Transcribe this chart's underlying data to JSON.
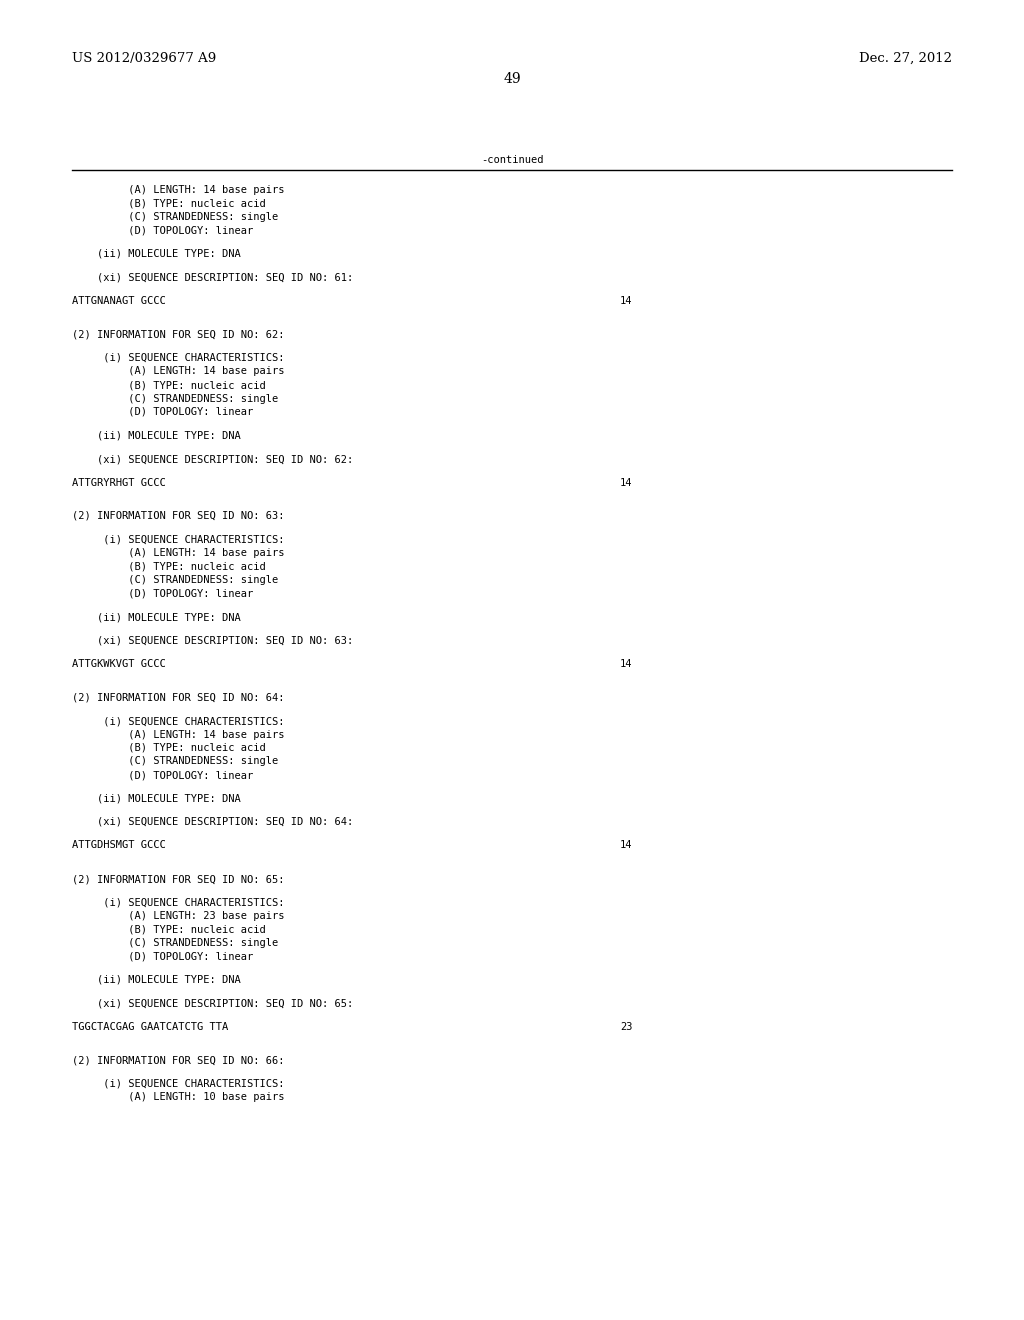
{
  "header_left": "US 2012/0329677 A9",
  "header_right": "Dec. 27, 2012",
  "page_number": "49",
  "continued_label": "-continued",
  "background_color": "#ffffff",
  "text_color": "#000000",
  "font_size_header": 9.5,
  "font_size_body": 7.5,
  "font_size_page": 10,
  "lines": [
    {
      "style": "mono",
      "text": "         (A) LENGTH: 14 base pairs"
    },
    {
      "style": "mono",
      "text": "         (B) TYPE: nucleic acid"
    },
    {
      "style": "mono",
      "text": "         (C) STRANDEDNESS: single"
    },
    {
      "style": "mono",
      "text": "         (D) TOPOLOGY: linear"
    },
    {
      "style": "blank"
    },
    {
      "style": "mono",
      "text": "    (ii) MOLECULE TYPE: DNA"
    },
    {
      "style": "blank"
    },
    {
      "style": "mono",
      "text": "    (xi) SEQUENCE DESCRIPTION: SEQ ID NO: 61:"
    },
    {
      "style": "blank"
    },
    {
      "style": "sequence",
      "seq": "ATTGNANAGT GCCC",
      "num": "14"
    },
    {
      "style": "blank"
    },
    {
      "style": "blank"
    },
    {
      "style": "mono",
      "text": "(2) INFORMATION FOR SEQ ID NO: 62:"
    },
    {
      "style": "blank"
    },
    {
      "style": "mono",
      "text": "     (i) SEQUENCE CHARACTERISTICS:"
    },
    {
      "style": "mono",
      "text": "         (A) LENGTH: 14 base pairs"
    },
    {
      "style": "mono",
      "text": "         (B) TYPE: nucleic acid"
    },
    {
      "style": "mono",
      "text": "         (C) STRANDEDNESS: single"
    },
    {
      "style": "mono",
      "text": "         (D) TOPOLOGY: linear"
    },
    {
      "style": "blank"
    },
    {
      "style": "mono",
      "text": "    (ii) MOLECULE TYPE: DNA"
    },
    {
      "style": "blank"
    },
    {
      "style": "mono",
      "text": "    (xi) SEQUENCE DESCRIPTION: SEQ ID NO: 62:"
    },
    {
      "style": "blank"
    },
    {
      "style": "sequence",
      "seq": "ATTGRYRHGT GCCC",
      "num": "14"
    },
    {
      "style": "blank"
    },
    {
      "style": "blank"
    },
    {
      "style": "mono",
      "text": "(2) INFORMATION FOR SEQ ID NO: 63:"
    },
    {
      "style": "blank"
    },
    {
      "style": "mono",
      "text": "     (i) SEQUENCE CHARACTERISTICS:"
    },
    {
      "style": "mono",
      "text": "         (A) LENGTH: 14 base pairs"
    },
    {
      "style": "mono",
      "text": "         (B) TYPE: nucleic acid"
    },
    {
      "style": "mono",
      "text": "         (C) STRANDEDNESS: single"
    },
    {
      "style": "mono",
      "text": "         (D) TOPOLOGY: linear"
    },
    {
      "style": "blank"
    },
    {
      "style": "mono",
      "text": "    (ii) MOLECULE TYPE: DNA"
    },
    {
      "style": "blank"
    },
    {
      "style": "mono",
      "text": "    (xi) SEQUENCE DESCRIPTION: SEQ ID NO: 63:"
    },
    {
      "style": "blank"
    },
    {
      "style": "sequence",
      "seq": "ATTGKWKVGT GCCC",
      "num": "14"
    },
    {
      "style": "blank"
    },
    {
      "style": "blank"
    },
    {
      "style": "mono",
      "text": "(2) INFORMATION FOR SEQ ID NO: 64:"
    },
    {
      "style": "blank"
    },
    {
      "style": "mono",
      "text": "     (i) SEQUENCE CHARACTERISTICS:"
    },
    {
      "style": "mono",
      "text": "         (A) LENGTH: 14 base pairs"
    },
    {
      "style": "mono",
      "text": "         (B) TYPE: nucleic acid"
    },
    {
      "style": "mono",
      "text": "         (C) STRANDEDNESS: single"
    },
    {
      "style": "mono",
      "text": "         (D) TOPOLOGY: linear"
    },
    {
      "style": "blank"
    },
    {
      "style": "mono",
      "text": "    (ii) MOLECULE TYPE: DNA"
    },
    {
      "style": "blank"
    },
    {
      "style": "mono",
      "text": "    (xi) SEQUENCE DESCRIPTION: SEQ ID NO: 64:"
    },
    {
      "style": "blank"
    },
    {
      "style": "sequence",
      "seq": "ATTGDHSMGT GCCC",
      "num": "14"
    },
    {
      "style": "blank"
    },
    {
      "style": "blank"
    },
    {
      "style": "mono",
      "text": "(2) INFORMATION FOR SEQ ID NO: 65:"
    },
    {
      "style": "blank"
    },
    {
      "style": "mono",
      "text": "     (i) SEQUENCE CHARACTERISTICS:"
    },
    {
      "style": "mono",
      "text": "         (A) LENGTH: 23 base pairs"
    },
    {
      "style": "mono",
      "text": "         (B) TYPE: nucleic acid"
    },
    {
      "style": "mono",
      "text": "         (C) STRANDEDNESS: single"
    },
    {
      "style": "mono",
      "text": "         (D) TOPOLOGY: linear"
    },
    {
      "style": "blank"
    },
    {
      "style": "mono",
      "text": "    (ii) MOLECULE TYPE: DNA"
    },
    {
      "style": "blank"
    },
    {
      "style": "mono",
      "text": "    (xi) SEQUENCE DESCRIPTION: SEQ ID NO: 65:"
    },
    {
      "style": "blank"
    },
    {
      "style": "sequence",
      "seq": "TGGCTACGAG GAATCATCTG TTA",
      "num": "23"
    },
    {
      "style": "blank"
    },
    {
      "style": "blank"
    },
    {
      "style": "mono",
      "text": "(2) INFORMATION FOR SEQ ID NO: 66:"
    },
    {
      "style": "blank"
    },
    {
      "style": "mono",
      "text": "     (i) SEQUENCE CHARACTERISTICS:"
    },
    {
      "style": "mono",
      "text": "         (A) LENGTH: 10 base pairs"
    }
  ]
}
